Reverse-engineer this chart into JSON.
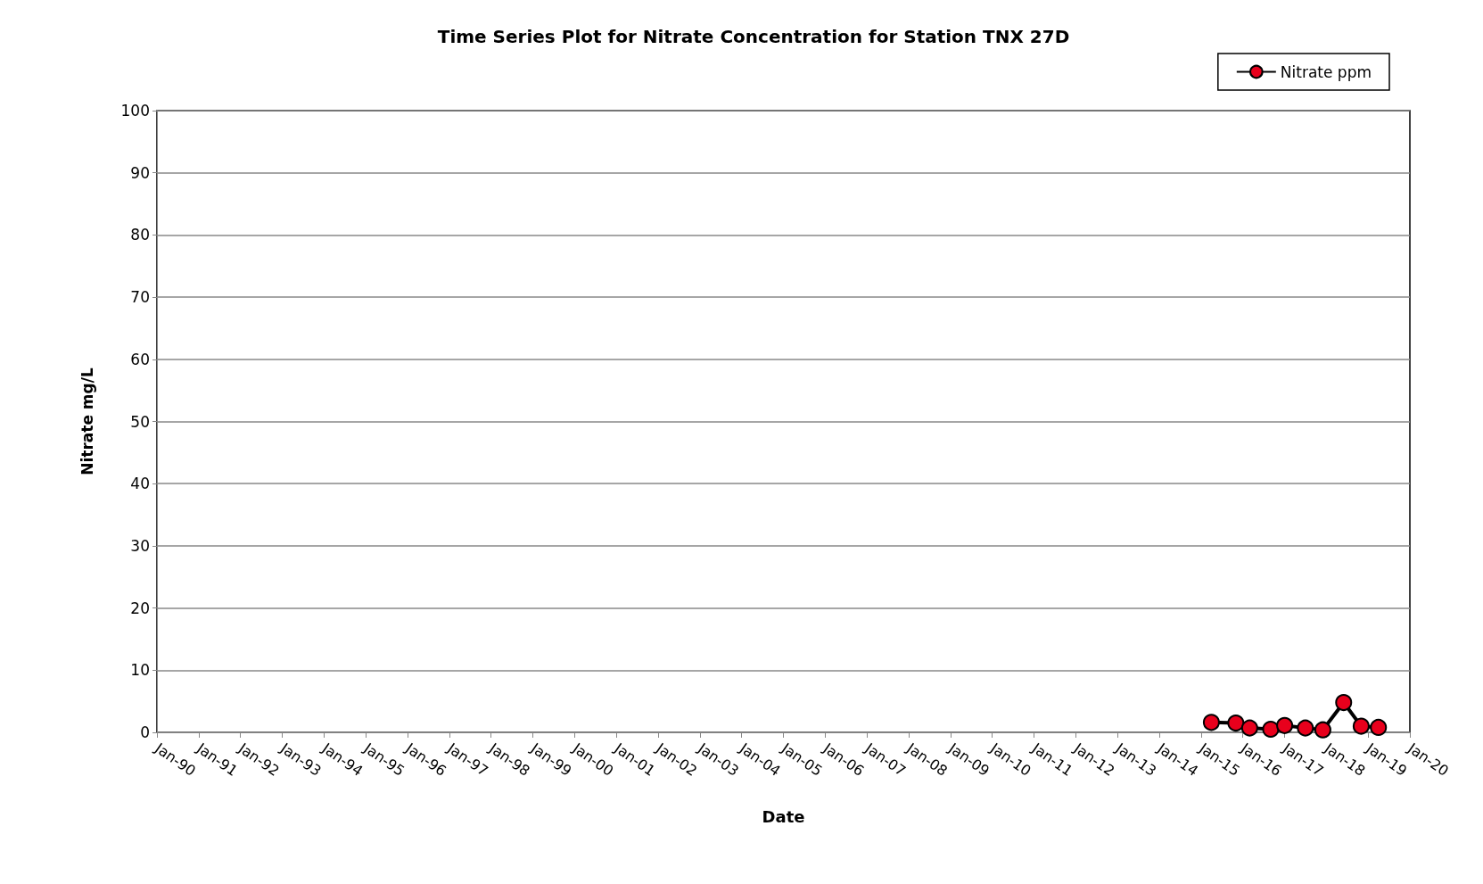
{
  "chart_data": {
    "type": "line",
    "title": "Time Series Plot for Nitrate Concentration for Station TNX 27D",
    "xlabel": "Date",
    "ylabel": "Nitrate mg/L",
    "x": [
      "2015-04",
      "2015-11",
      "2016-03",
      "2016-09",
      "2017-01",
      "2017-07",
      "2017-12",
      "2018-06",
      "2018-11",
      "2019-04"
    ],
    "series": [
      {
        "name": "Nitrate ppm",
        "color": "#e8001c",
        "values": [
          1.6,
          1.5,
          0.7,
          0.5,
          1.1,
          0.7,
          0.4,
          4.8,
          1.0,
          0.8
        ]
      }
    ],
    "xlim": [
      "1990-01",
      "2020-01"
    ],
    "xticks": [
      {
        "value": "1990-01",
        "label": "Jan-90"
      },
      {
        "value": "1991-01",
        "label": "Jan-91"
      },
      {
        "value": "1992-01",
        "label": "Jan-92"
      },
      {
        "value": "1993-01",
        "label": "Jan-93"
      },
      {
        "value": "1994-01",
        "label": "Jan-94"
      },
      {
        "value": "1995-01",
        "label": "Jan-95"
      },
      {
        "value": "1996-01",
        "label": "Jan-96"
      },
      {
        "value": "1997-01",
        "label": "Jan-97"
      },
      {
        "value": "1998-01",
        "label": "Jan-98"
      },
      {
        "value": "1999-01",
        "label": "Jan-99"
      },
      {
        "value": "2000-01",
        "label": "Jan-00"
      },
      {
        "value": "2001-01",
        "label": "Jan-01"
      },
      {
        "value": "2002-01",
        "label": "Jan-02"
      },
      {
        "value": "2003-01",
        "label": "Jan-03"
      },
      {
        "value": "2004-01",
        "label": "Jan-04"
      },
      {
        "value": "2005-01",
        "label": "Jan-05"
      },
      {
        "value": "2006-01",
        "label": "Jan-06"
      },
      {
        "value": "2007-01",
        "label": "Jan-07"
      },
      {
        "value": "2008-01",
        "label": "Jan-08"
      },
      {
        "value": "2009-01",
        "label": "Jan-09"
      },
      {
        "value": "2010-01",
        "label": "Jan-10"
      },
      {
        "value": "2011-01",
        "label": "Jan-11"
      },
      {
        "value": "2012-01",
        "label": "Jan-12"
      },
      {
        "value": "2013-01",
        "label": "Jan-13"
      },
      {
        "value": "2014-01",
        "label": "Jan-14"
      },
      {
        "value": "2015-01",
        "label": "Jan-15"
      },
      {
        "value": "2016-01",
        "label": "Jan-16"
      },
      {
        "value": "2017-01",
        "label": "Jan-17"
      },
      {
        "value": "2018-01",
        "label": "Jan-18"
      },
      {
        "value": "2019-01",
        "label": "Jan-19"
      },
      {
        "value": "2020-01",
        "label": "Jan-20"
      }
    ],
    "ylim": [
      0,
      100
    ],
    "yticks": [
      0,
      10,
      20,
      30,
      40,
      50,
      60,
      70,
      80,
      90,
      100
    ],
    "grid": "y",
    "legend": "top right",
    "marker": "circle",
    "line_style": "solid"
  }
}
